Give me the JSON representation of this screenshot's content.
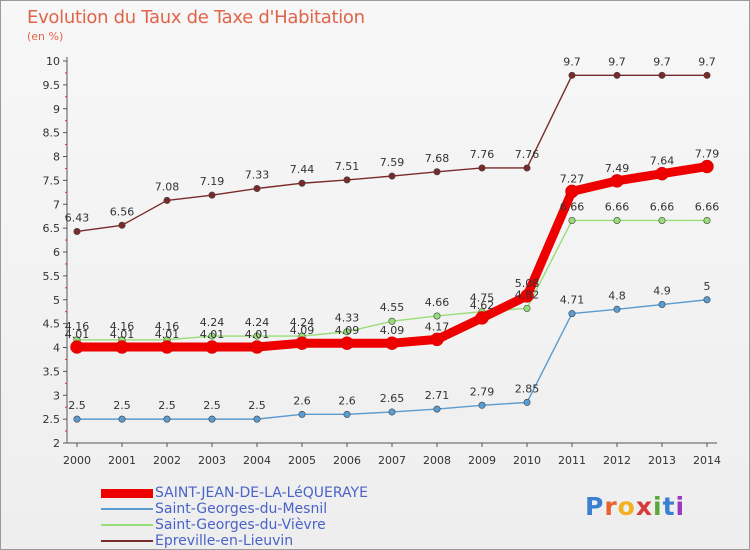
{
  "header": {
    "title": "Evolution du Taux de Taxe d'Habitation",
    "subtitle": "(en %)"
  },
  "logo": {
    "text": "Proxiti",
    "letter_colors": [
      "#3b7fd0",
      "#e8632b",
      "#f0b020",
      "#d83a3a",
      "#5aa83a",
      "#3b7fd0",
      "#9a3ac0"
    ]
  },
  "chart_data": {
    "type": "line",
    "title": "Evolution du Taux de Taxe d'Habitation",
    "ylabel": "(en %)",
    "xlabel": "",
    "x": [
      "2000",
      "2001",
      "2002",
      "2003",
      "2004",
      "2005",
      "2006",
      "2007",
      "2008",
      "2009",
      "2010",
      "2011",
      "2012",
      "2013",
      "2014"
    ],
    "ylim": [
      2,
      10
    ],
    "yticks": [
      "2",
      "2.5",
      "3",
      "3.5",
      "4",
      "4.5",
      "5",
      "5.5",
      "6",
      "6.5",
      "7",
      "7.5",
      "8",
      "8.5",
      "9",
      "9.5",
      "10"
    ],
    "grid": false,
    "legend_position": "bottom-left",
    "series": [
      {
        "name": "SAINT-JEAN-DE-LA-LéQUERAYE",
        "color": "#ee0000",
        "emphasis": true,
        "values": [
          4.01,
          4.01,
          4.01,
          4.01,
          4.01,
          4.09,
          4.09,
          4.09,
          4.17,
          4.62,
          5.08,
          7.27,
          7.49,
          7.64,
          7.79
        ],
        "labels": [
          "4.01",
          "4.01",
          "4.01",
          "4.01",
          "4.01",
          "4.09",
          "4.09",
          "4.09",
          "4.17",
          "4.62",
          "5.08",
          "7.27",
          "7.49",
          "7.64",
          "7.79"
        ]
      },
      {
        "name": "Saint-Georges-du-Mesnil",
        "color": "#5a9bd0",
        "values": [
          2.5,
          2.5,
          2.5,
          2.5,
          2.5,
          2.6,
          2.6,
          2.65,
          2.71,
          2.79,
          2.85,
          4.71,
          4.8,
          4.9,
          5.0
        ],
        "labels": [
          "2.5",
          "2.5",
          "2.5",
          "2.5",
          "2.5",
          "2.6",
          "2.6",
          "2.65",
          "2.71",
          "2.79",
          "2.85",
          "4.71",
          "4.8",
          "4.9",
          "5"
        ]
      },
      {
        "name": "Saint-Georges-du-Vièvre",
        "color": "#99dd77",
        "values": [
          4.16,
          4.16,
          4.16,
          4.24,
          4.24,
          4.24,
          4.33,
          4.55,
          4.66,
          4.75,
          4.82,
          6.66,
          6.66,
          6.66,
          6.66
        ],
        "labels": [
          "4.16",
          "4.16",
          "4.16",
          "4.24",
          "4.24",
          "4.24",
          "4.33",
          "4.55",
          "4.66",
          "4.75",
          "4.82",
          "6.66",
          "6.66",
          "6.66",
          "6.66"
        ]
      },
      {
        "name": "Epreville-en-Lieuvin",
        "color": "#7a2a2a",
        "values": [
          6.43,
          6.56,
          7.08,
          7.19,
          7.33,
          7.44,
          7.51,
          7.59,
          7.68,
          7.76,
          7.76,
          9.7,
          9.7,
          9.7,
          9.7
        ],
        "labels": [
          "6.43",
          "6.56",
          "7.08",
          "7.19",
          "7.33",
          "7.44",
          "7.51",
          "7.59",
          "7.68",
          "7.76",
          "7.76",
          "9.7",
          "9.7",
          "9.7",
          "9.7"
        ]
      }
    ]
  }
}
